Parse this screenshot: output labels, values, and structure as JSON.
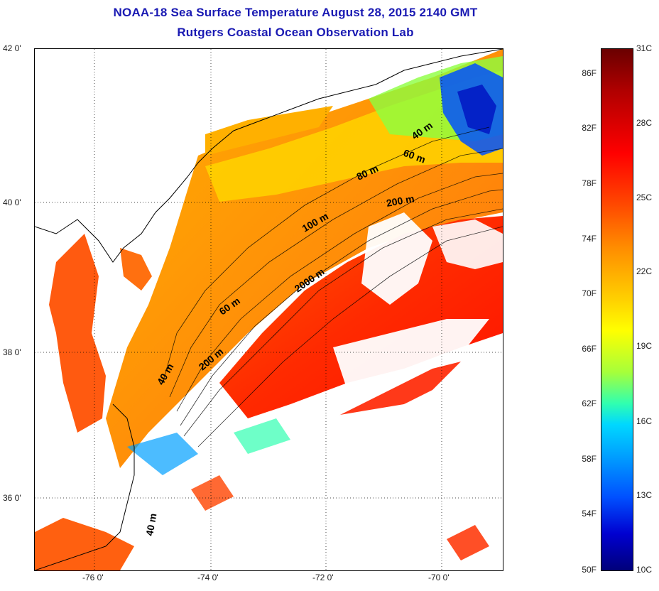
{
  "title_line1": "NOAA-18 Sea Surface Temperature August 28, 2015 2140 GMT",
  "title_line2": "Rutgers Coastal Ocean Observation Lab",
  "lat_labels": [
    "42 0'",
    "40 0'",
    "38 0'",
    "36 0'"
  ],
  "lon_labels": [
    "-76 0'",
    "-74 0'",
    "-72 0'",
    "-70 0'"
  ],
  "contour_labels": {
    "c40_north": "40 m",
    "c60_north": "60 m",
    "c80": "80 m",
    "c200_north": "200 m",
    "c100": "100 m",
    "c2000": "2000 m",
    "c60_mid": "60 m",
    "c200_mid": "200 m",
    "c40_mid": "40 m",
    "c40_south": "40 m"
  },
  "colorbar": {
    "fahrenheit": [
      "86F",
      "82F",
      "78F",
      "74F",
      "70F",
      "66F",
      "62F",
      "58F",
      "54F",
      "50F"
    ],
    "celsius": [
      "31C",
      "28C",
      "25C",
      "22C",
      "19C",
      "16C",
      "13C",
      "10C"
    ]
  },
  "colors": {
    "title": "#1a1ab3",
    "land_bg": "#ffffff",
    "warm": "#ff2000",
    "mid": "#ff7a10",
    "cool": "#00a0ff"
  }
}
